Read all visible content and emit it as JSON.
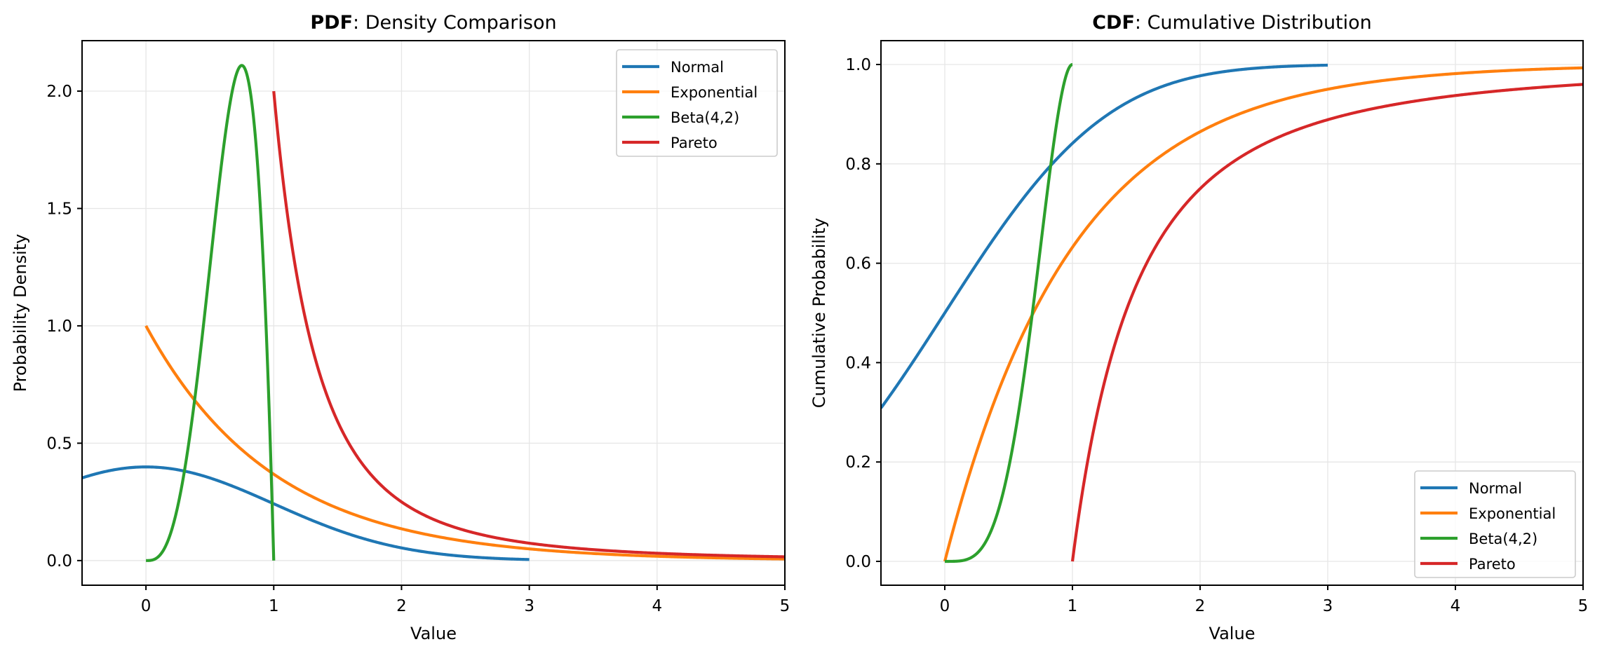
{
  "chart_data": [
    {
      "type": "line",
      "title_bold": "PDF",
      "title_rest": ": Density Comparison",
      "xlabel": "Value",
      "ylabel": "Probability Density",
      "xlim": [
        -0.5,
        5
      ],
      "ylim": [
        -0.105,
        2.215
      ],
      "xticks": [
        0,
        1,
        2,
        3,
        4,
        5
      ],
      "xtick_labels": [
        "0",
        "1",
        "2",
        "3",
        "4",
        "5"
      ],
      "yticks": [
        0.0,
        0.5,
        1.0,
        1.5,
        2.0
      ],
      "ytick_labels": [
        "0.0",
        "0.5",
        "1.0",
        "1.5",
        "2.0"
      ],
      "grid": true,
      "legend": "top-right",
      "series": [
        {
          "name": "Normal",
          "color": "#1f77b4",
          "function": "normal_pdf",
          "params": {
            "mu": 0,
            "sigma": 1
          },
          "domain": [
            -3,
            3
          ],
          "sample_points": {
            "x": [
              -0.5,
              0,
              0.5,
              1,
              1.5,
              2,
              2.5,
              3
            ],
            "y": [
              0.352,
              0.399,
              0.352,
              0.242,
              0.13,
              0.054,
              0.018,
              0.004
            ]
          }
        },
        {
          "name": "Exponential",
          "color": "#ff7f0e",
          "function": "exponential_pdf",
          "params": {
            "lambda": 1
          },
          "domain": [
            0,
            5
          ],
          "sample_points": {
            "x": [
              0,
              0.5,
              1,
              1.5,
              2,
              3,
              4,
              5
            ],
            "y": [
              1.0,
              0.607,
              0.368,
              0.223,
              0.135,
              0.05,
              0.018,
              0.007
            ]
          }
        },
        {
          "name": "Beta(4,2)",
          "color": "#2ca02c",
          "function": "beta_pdf",
          "params": {
            "a": 4,
            "b": 2
          },
          "domain": [
            0,
            1
          ],
          "sample_points": {
            "x": [
              0,
              0.25,
              0.5,
              0.75,
              0.9,
              1
            ],
            "y": [
              0.0,
              0.234,
              1.25,
              2.109,
              1.458,
              0.0
            ]
          }
        },
        {
          "name": "Pareto",
          "color": "#d62728",
          "function": "pareto_pdf",
          "params": {
            "alpha": 2,
            "xm": 1
          },
          "domain": [
            1,
            5
          ],
          "sample_points": {
            "x": [
              1,
              1.5,
              2,
              3,
              4,
              5
            ],
            "y": [
              2.0,
              0.593,
              0.25,
              0.074,
              0.031,
              0.016
            ]
          }
        }
      ]
    },
    {
      "type": "line",
      "title_bold": "CDF",
      "title_rest": ": Cumulative Distribution",
      "xlabel": "Value",
      "ylabel": "Cumulative Probability",
      "xlim": [
        -0.5,
        5
      ],
      "ylim": [
        -0.048,
        1.048
      ],
      "xticks": [
        0,
        1,
        2,
        3,
        4,
        5
      ],
      "xtick_labels": [
        "0",
        "1",
        "2",
        "3",
        "4",
        "5"
      ],
      "yticks": [
        0.0,
        0.2,
        0.4,
        0.6,
        0.8,
        1.0
      ],
      "ytick_labels": [
        "0.0",
        "0.2",
        "0.4",
        "0.6",
        "0.8",
        "1.0"
      ],
      "grid": true,
      "legend": "bottom-right",
      "series": [
        {
          "name": "Normal",
          "color": "#1f77b4",
          "function": "normal_cdf",
          "params": {
            "mu": 0,
            "sigma": 1
          },
          "domain": [
            -3,
            3
          ],
          "sample_points": {
            "x": [
              -0.5,
              0,
              0.5,
              1,
              1.5,
              2,
              3
            ],
            "y": [
              0.309,
              0.5,
              0.691,
              0.841,
              0.933,
              0.977,
              0.999
            ]
          }
        },
        {
          "name": "Exponential",
          "color": "#ff7f0e",
          "function": "exponential_cdf",
          "params": {
            "lambda": 1
          },
          "domain": [
            0,
            5
          ],
          "sample_points": {
            "x": [
              0,
              0.5,
              1,
              2,
              3,
              4,
              5
            ],
            "y": [
              0.0,
              0.393,
              0.632,
              0.865,
              0.95,
              0.982,
              0.993
            ]
          }
        },
        {
          "name": "Beta(4,2)",
          "color": "#2ca02c",
          "function": "beta_cdf",
          "params": {
            "a": 4,
            "b": 2
          },
          "domain": [
            0,
            1
          ],
          "sample_points": {
            "x": [
              0,
              0.25,
              0.5,
              0.75,
              1
            ],
            "y": [
              0.0,
              0.016,
              0.188,
              0.633,
              1.0
            ]
          }
        },
        {
          "name": "Pareto",
          "color": "#d62728",
          "function": "pareto_cdf",
          "params": {
            "alpha": 2,
            "xm": 1
          },
          "domain": [
            1,
            5
          ],
          "sample_points": {
            "x": [
              1,
              1.5,
              2,
              3,
              4,
              5
            ],
            "y": [
              0.0,
              0.556,
              0.75,
              0.889,
              0.938,
              0.96
            ]
          }
        }
      ]
    }
  ]
}
